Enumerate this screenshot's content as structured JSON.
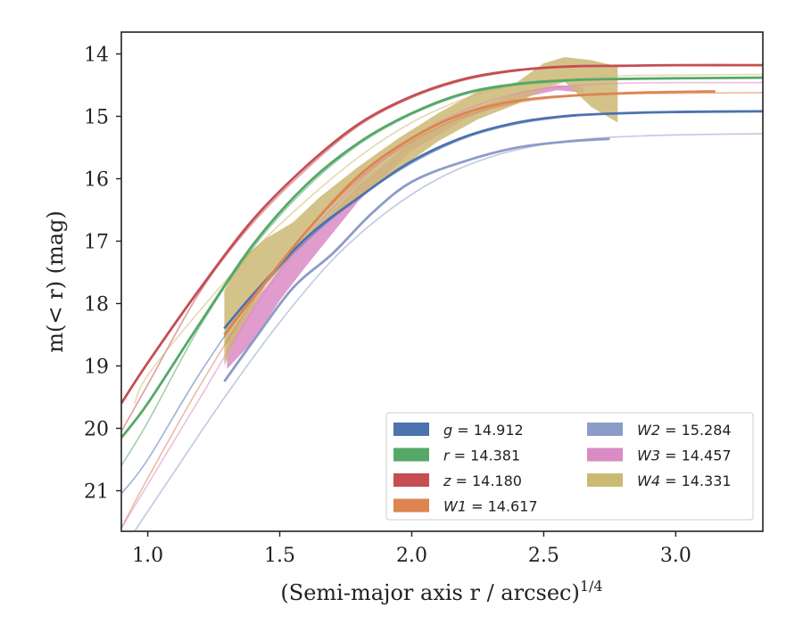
{
  "chart_data": {
    "type": "line",
    "xlabel": "(Semi-major axis r / arcsec)",
    "xlabel_sup": "1/4",
    "ylabel": "m(< r) (mag)",
    "xlim": [
      0.9,
      3.33
    ],
    "ylim": [
      21.65,
      13.65
    ],
    "y_inverted": true,
    "xticks": [
      "1.0",
      "1.5",
      "2.0",
      "2.5",
      "3.0"
    ],
    "xtick_values": [
      1.0,
      1.5,
      2.0,
      2.5,
      3.0
    ],
    "yticks": [
      "14",
      "15",
      "16",
      "17",
      "18",
      "19",
      "20",
      "21"
    ],
    "ytick_values": [
      14,
      15,
      16,
      17,
      18,
      19,
      20,
      21
    ],
    "grid": false,
    "legend_position": "lower-right",
    "legend_columns": 2,
    "series": [
      {
        "name": "g = 14.912",
        "label_var": "g",
        "label_val": "= 14.912",
        "color": "#4c72b0",
        "model": [
          [
            0.9,
            21.05
          ],
          [
            1.0,
            20.5
          ],
          [
            1.2,
            19.1
          ],
          [
            1.4,
            17.9
          ],
          [
            1.6,
            17.0
          ],
          [
            1.8,
            16.3
          ],
          [
            2.0,
            15.75
          ],
          [
            2.2,
            15.35
          ],
          [
            2.4,
            15.12
          ],
          [
            2.6,
            15.0
          ],
          [
            2.8,
            14.95
          ],
          [
            3.0,
            14.93
          ],
          [
            3.33,
            14.92
          ]
        ],
        "data": [
          [
            1.29,
            18.4
          ],
          [
            1.4,
            17.85
          ],
          [
            1.6,
            16.95
          ],
          [
            1.8,
            16.3
          ],
          [
            2.0,
            15.72
          ],
          [
            2.2,
            15.33
          ],
          [
            2.4,
            15.1
          ],
          [
            2.6,
            14.99
          ],
          [
            2.8,
            14.95
          ],
          [
            3.0,
            14.93
          ],
          [
            3.33,
            14.92
          ]
        ]
      },
      {
        "name": "r = 14.381",
        "label_var": "r",
        "label_val": "= 14.381",
        "color": "#55a868",
        "model": [
          [
            0.9,
            20.6
          ],
          [
            1.0,
            19.9
          ],
          [
            1.2,
            18.35
          ],
          [
            1.4,
            17.1
          ],
          [
            1.6,
            16.15
          ],
          [
            1.8,
            15.45
          ],
          [
            2.0,
            14.97
          ],
          [
            2.2,
            14.65
          ],
          [
            2.4,
            14.5
          ],
          [
            2.6,
            14.43
          ],
          [
            2.8,
            14.4
          ],
          [
            3.0,
            14.39
          ],
          [
            3.33,
            14.38
          ]
        ],
        "data": [
          [
            0.9,
            20.15
          ],
          [
            1.0,
            19.6
          ],
          [
            1.2,
            18.3
          ],
          [
            1.4,
            17.05
          ],
          [
            1.6,
            16.1
          ],
          [
            1.8,
            15.42
          ],
          [
            2.0,
            14.95
          ],
          [
            2.2,
            14.63
          ],
          [
            2.4,
            14.48
          ],
          [
            2.6,
            14.42
          ],
          [
            2.8,
            14.4
          ],
          [
            3.0,
            14.39
          ],
          [
            3.33,
            14.38
          ]
        ]
      },
      {
        "name": "z = 14.180",
        "label_var": "z",
        "label_val": "= 14.180",
        "color": "#c44e52",
        "model": [
          [
            0.9,
            20.05
          ],
          [
            1.0,
            19.3
          ],
          [
            1.2,
            17.8
          ],
          [
            1.4,
            16.7
          ],
          [
            1.6,
            15.85
          ],
          [
            1.8,
            15.15
          ],
          [
            2.0,
            14.7
          ],
          [
            2.2,
            14.42
          ],
          [
            2.4,
            14.27
          ],
          [
            2.6,
            14.21
          ],
          [
            2.8,
            14.19
          ],
          [
            3.0,
            14.18
          ],
          [
            3.33,
            14.18
          ]
        ],
        "data": [
          [
            0.9,
            19.6
          ],
          [
            1.0,
            18.95
          ],
          [
            1.2,
            17.75
          ],
          [
            1.4,
            16.65
          ],
          [
            1.6,
            15.8
          ],
          [
            1.8,
            15.12
          ],
          [
            2.0,
            14.68
          ],
          [
            2.2,
            14.4
          ],
          [
            2.4,
            14.26
          ],
          [
            2.6,
            14.2
          ],
          [
            2.8,
            14.19
          ],
          [
            3.0,
            14.18
          ],
          [
            3.33,
            14.18
          ]
        ]
      },
      {
        "name": "W1 = 14.617",
        "label_var": "W1",
        "label_val": "= 14.617",
        "color": "#dd8452",
        "model": [
          [
            0.9,
            21.6
          ],
          [
            1.0,
            20.8
          ],
          [
            1.2,
            19.3
          ],
          [
            1.4,
            17.95
          ],
          [
            1.6,
            16.85
          ],
          [
            1.8,
            16.0
          ],
          [
            2.0,
            15.4
          ],
          [
            2.2,
            15.0
          ],
          [
            2.4,
            14.78
          ],
          [
            2.6,
            14.68
          ],
          [
            2.8,
            14.64
          ],
          [
            3.0,
            14.63
          ],
          [
            3.33,
            14.62
          ]
        ],
        "data": [
          [
            1.29,
            18.5
          ],
          [
            1.4,
            17.9
          ],
          [
            1.6,
            16.85
          ],
          [
            1.8,
            15.95
          ],
          [
            2.0,
            15.35
          ],
          [
            2.2,
            14.95
          ],
          [
            2.4,
            14.75
          ],
          [
            2.6,
            14.67
          ],
          [
            2.8,
            14.63
          ],
          [
            3.0,
            14.61
          ],
          [
            3.15,
            14.6
          ]
        ]
      },
      {
        "name": "W2 = 15.284",
        "label_var": "W2",
        "label_val": "= 15.284",
        "color": "#8c9cc8",
        "model": [
          [
            0.95,
            21.65
          ],
          [
            1.1,
            20.7
          ],
          [
            1.3,
            19.45
          ],
          [
            1.5,
            18.3
          ],
          [
            1.7,
            17.3
          ],
          [
            1.9,
            16.55
          ],
          [
            2.1,
            16.0
          ],
          [
            2.3,
            15.65
          ],
          [
            2.5,
            15.45
          ],
          [
            2.7,
            15.35
          ],
          [
            2.9,
            15.31
          ],
          [
            3.1,
            15.29
          ],
          [
            3.33,
            15.28
          ]
        ],
        "data": [
          [
            1.29,
            19.25
          ],
          [
            1.4,
            18.6
          ],
          [
            1.55,
            17.75
          ],
          [
            1.7,
            17.2
          ],
          [
            1.85,
            16.55
          ],
          [
            2.0,
            16.05
          ],
          [
            2.2,
            15.72
          ],
          [
            2.4,
            15.5
          ],
          [
            2.6,
            15.4
          ],
          [
            2.75,
            15.36
          ]
        ]
      },
      {
        "name": "W3 = 14.457",
        "label_var": "W3",
        "label_val": "= 14.457",
        "color": "#da8bc3",
        "model": [
          [
            0.9,
            21.6
          ],
          [
            1.0,
            20.9
          ],
          [
            1.2,
            19.5
          ],
          [
            1.4,
            18.1
          ],
          [
            1.6,
            16.95
          ],
          [
            1.8,
            16.05
          ],
          [
            2.0,
            15.35
          ],
          [
            2.2,
            14.9
          ],
          [
            2.4,
            14.63
          ],
          [
            2.6,
            14.51
          ],
          [
            2.8,
            14.47
          ],
          [
            3.0,
            14.46
          ],
          [
            3.33,
            14.46
          ]
        ],
        "band": [
          [
            1.3,
            18.55,
            19.05
          ],
          [
            1.4,
            18.0,
            18.6
          ],
          [
            1.5,
            17.45,
            17.95
          ],
          [
            1.6,
            16.95,
            17.4
          ],
          [
            1.8,
            16.1,
            16.35
          ],
          [
            2.0,
            15.4,
            15.55
          ],
          [
            2.2,
            14.95,
            15.05
          ],
          [
            2.4,
            14.62,
            14.72
          ],
          [
            2.55,
            14.5,
            14.58
          ],
          [
            2.65,
            14.52,
            14.62
          ]
        ]
      },
      {
        "name": "W4 = 14.331",
        "label_var": "W4",
        "label_val": "= 14.331",
        "color": "#ccb974",
        "model": [
          [
            0.95,
            19.6
          ],
          [
            1.0,
            19.15
          ],
          [
            1.2,
            18.1
          ],
          [
            1.4,
            17.15
          ],
          [
            1.6,
            16.35
          ],
          [
            1.8,
            15.65
          ],
          [
            2.0,
            15.1
          ],
          [
            2.2,
            14.72
          ],
          [
            2.4,
            14.5
          ],
          [
            2.6,
            14.4
          ],
          [
            2.8,
            14.35
          ],
          [
            3.0,
            14.34
          ],
          [
            3.33,
            14.33
          ]
        ],
        "band": [
          [
            1.29,
            17.8,
            19.0
          ],
          [
            1.35,
            17.3,
            18.4
          ],
          [
            1.45,
            16.95,
            17.7
          ],
          [
            1.55,
            16.7,
            17.2
          ],
          [
            1.65,
            16.3,
            16.75
          ],
          [
            1.8,
            15.8,
            16.3
          ],
          [
            1.95,
            15.35,
            15.85
          ],
          [
            2.1,
            14.95,
            15.4
          ],
          [
            2.25,
            14.6,
            15.05
          ],
          [
            2.4,
            14.45,
            14.8
          ],
          [
            2.5,
            14.15,
            14.55
          ],
          [
            2.58,
            14.05,
            14.45
          ],
          [
            2.68,
            14.1,
            14.85
          ],
          [
            2.78,
            14.2,
            15.1
          ]
        ]
      }
    ]
  }
}
